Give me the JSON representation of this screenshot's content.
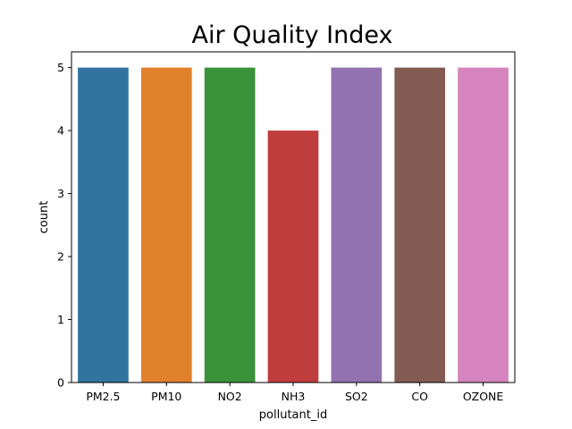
{
  "chart_data": {
    "type": "bar",
    "title": "Air Quality Index",
    "xlabel": "pollutant_id",
    "ylabel": "count",
    "categories": [
      "PM2.5",
      "PM10",
      "NO2",
      "NH3",
      "SO2",
      "CO",
      "OZONE"
    ],
    "values": [
      5,
      5,
      5,
      4,
      5,
      5,
      5
    ],
    "colors": [
      "#3274a1",
      "#e1812c",
      "#3a923a",
      "#c03d3e",
      "#9372b2",
      "#845b53",
      "#d684bd"
    ],
    "ylim": [
      0,
      5.25
    ],
    "yticks": [
      0,
      1,
      2,
      3,
      4,
      5
    ],
    "grid": false,
    "legend": "none"
  }
}
